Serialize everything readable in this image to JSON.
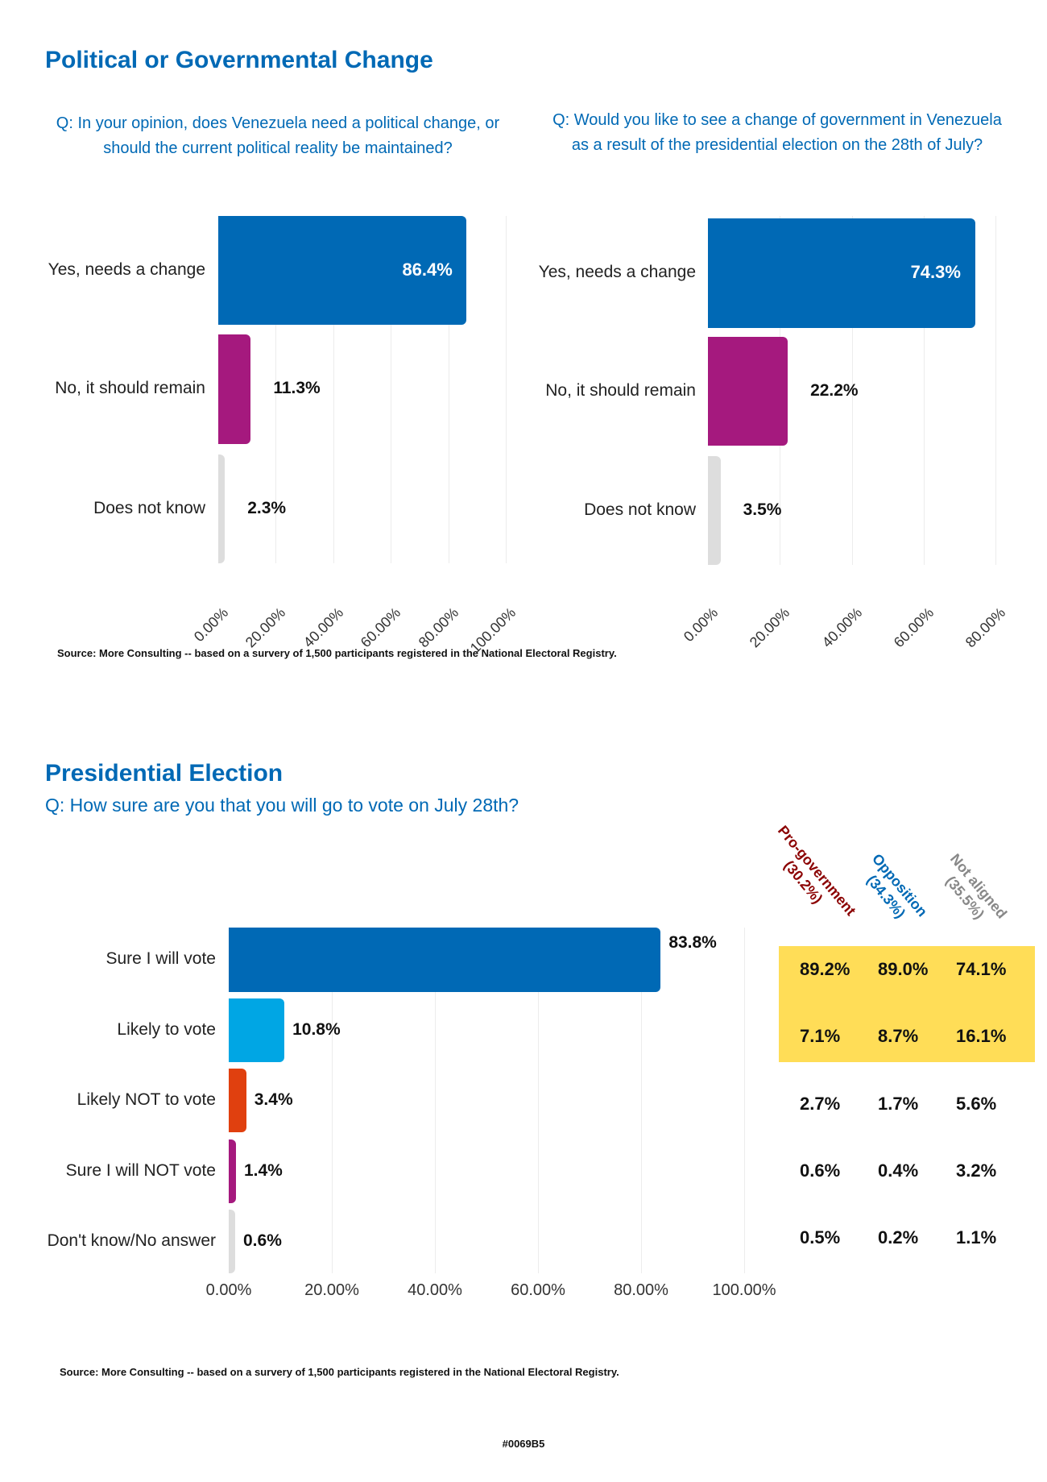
{
  "section1": {
    "title": "Political or Governmental Change",
    "source": "Source: More Consulting -- based on a survery of 1,500 participants registered in the National Electoral Registry."
  },
  "section2": {
    "title": "Presidential Election",
    "question": "Q: How sure are you that you will go to vote on July 28th?",
    "source": "Source: More Consulting -- based on a survery of 1,500 participants registered in the National Electoral Registry.",
    "table": {
      "headers": [
        {
          "label": "Pro-government",
          "share": "(30.2%)",
          "color": "#8B0000"
        },
        {
          "label": "Opposition",
          "share": "(34.3%)",
          "color": "#0069B5"
        },
        {
          "label": "Not aligned",
          "share": "(35.5%)",
          "color": "#888888"
        }
      ],
      "rows": [
        [
          "89.2%",
          "89.0%",
          "74.1%"
        ],
        [
          "7.1%",
          "8.7%",
          "16.1%"
        ],
        [
          "2.7%",
          "1.7%",
          "5.6%"
        ],
        [
          "0.6%",
          "0.4%",
          "3.2%"
        ],
        [
          "0.5%",
          "0.2%",
          "1.1%"
        ]
      ],
      "highlight_color": "#FFDD57",
      "highlighted_rows": [
        0,
        1
      ]
    }
  },
  "footer": "#0069B5",
  "chart_data": [
    {
      "type": "bar",
      "orientation": "horizontal",
      "title": "Q: In your opinion, does Venezuela need a political change, or should the current political reality be maintained?",
      "categories": [
        "Yes, needs a change",
        "No, it should remain",
        "Does not know"
      ],
      "values": [
        86.4,
        11.3,
        2.3
      ],
      "labels": [
        "86.4%",
        "11.3%",
        "2.3%"
      ],
      "colors": [
        "#0069B5",
        "#A5197E",
        "#DDDDDD"
      ],
      "xlim": [
        0,
        100
      ],
      "ticks": [
        "0.00%",
        "20.00%",
        "40.00%",
        "60.00%",
        "80.00%",
        "100.00%"
      ],
      "grid": true
    },
    {
      "type": "bar",
      "orientation": "horizontal",
      "title": "Q: Would you like to see a change of government in Venezuela as a result of the presidential election on the 28th of July?",
      "categories": [
        "Yes, needs a change",
        "No, it should remain",
        "Does not know"
      ],
      "values": [
        74.3,
        22.2,
        3.5
      ],
      "labels": [
        "74.3%",
        "22.2%",
        "3.5%"
      ],
      "colors": [
        "#0069B5",
        "#A5197E",
        "#DDDDDD"
      ],
      "xlim": [
        0,
        80
      ],
      "ticks": [
        "0.00%",
        "20.00%",
        "40.00%",
        "60.00%",
        "80.00%"
      ],
      "grid": true
    },
    {
      "type": "bar",
      "orientation": "horizontal",
      "categories": [
        "Sure I will vote",
        "Likely to vote",
        "Likely NOT to vote",
        "Sure I will NOT vote",
        "Don't know/No answer"
      ],
      "values": [
        83.8,
        10.8,
        3.4,
        1.4,
        0.6
      ],
      "labels": [
        "83.8%",
        "10.8%",
        "3.4%",
        "1.4%",
        "0.6%"
      ],
      "colors": [
        "#0069B5",
        "#00A6E4",
        "#E0400F",
        "#A5197E",
        "#DDDDDD"
      ],
      "xlim": [
        0,
        100
      ],
      "ticks": [
        "0.00%",
        "20.00%",
        "40.00%",
        "60.00%",
        "80.00%",
        "100.00%"
      ],
      "grid": true
    }
  ]
}
